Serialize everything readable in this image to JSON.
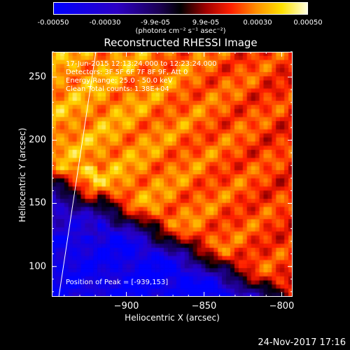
{
  "colorbar": {
    "ticks": [
      "-0.00050",
      "-0.00030",
      "-9.9e-05",
      "9.9e-05",
      "0.00030",
      "0.00050"
    ],
    "unit_label": "(photons cm⁻² s⁻¹ asec⁻²)",
    "range": [
      -0.0005,
      0.0005
    ]
  },
  "chart_data": {
    "type": "heatmap",
    "title": "Reconstructed RHESSI Image",
    "xlabel": "Heliocentric X (arcsec)",
    "ylabel": "Heliocentric Y (arcsec)",
    "xlim": [
      -948,
      -793
    ],
    "ylim": [
      76,
      270
    ],
    "x_ticks": [
      -900,
      -850,
      -800
    ],
    "x_tick_labels": [
      "−900",
      "−850",
      "−800"
    ],
    "y_ticks": [
      100,
      150,
      200,
      250
    ],
    "y_tick_labels": [
      "100",
      "150",
      "200",
      "250"
    ],
    "annotations": [
      "17-Jun-2015 12:13:24.000 to 12:23:24.000",
      "Detectors: 3F 5F 6F 7F 8F 9F, Att 0",
      "Energy Range: 25.0 - 50.0 keV",
      "Clean    Total counts: 1.38E+04"
    ],
    "peak_label": "Position of Peak = [-939,153]",
    "peak": [
      -939,
      153
    ],
    "colormap": "rainbow-3"
  },
  "footer": {
    "date": "24-Nov-2017 17:16"
  }
}
